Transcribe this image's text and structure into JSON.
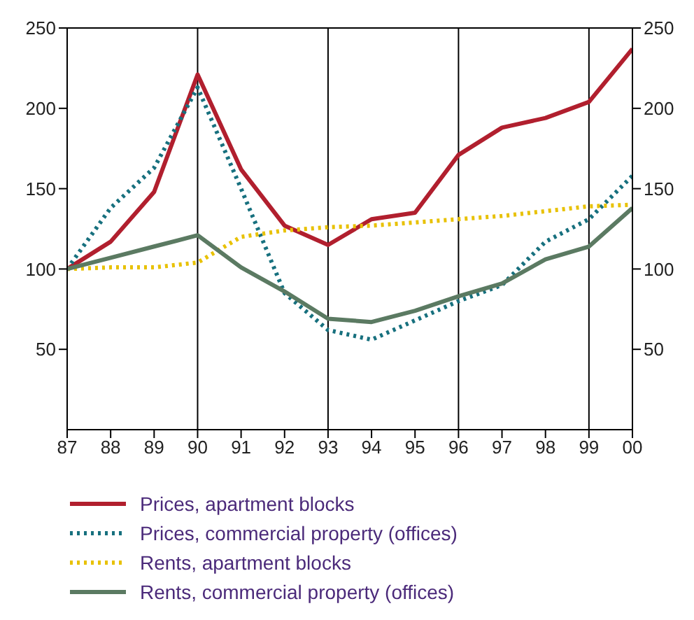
{
  "chart_data": {
    "type": "line",
    "x": [
      1987,
      1988,
      1989,
      1990,
      1991,
      1992,
      1993,
      1994,
      1995,
      1996,
      1997,
      1998,
      1999,
      2000
    ],
    "xlim": [
      1987,
      2000
    ],
    "xticks": [
      {
        "value": 1987,
        "label": "87"
      },
      {
        "value": 1988,
        "label": "88"
      },
      {
        "value": 1989,
        "label": "89"
      },
      {
        "value": 1990,
        "label": "90"
      },
      {
        "value": 1991,
        "label": "91"
      },
      {
        "value": 1992,
        "label": "92"
      },
      {
        "value": 1993,
        "label": "93"
      },
      {
        "value": 1994,
        "label": "94"
      },
      {
        "value": 1995,
        "label": "95"
      },
      {
        "value": 1996,
        "label": "96"
      },
      {
        "value": 1997,
        "label": "97"
      },
      {
        "value": 1998,
        "label": "98"
      },
      {
        "value": 1999,
        "label": "99"
      },
      {
        "value": 2000,
        "label": "00"
      }
    ],
    "ylim": [
      0,
      250
    ],
    "yticks": [
      50,
      100,
      150,
      200,
      250
    ],
    "y2lim": [
      0,
      250
    ],
    "y2ticks": [
      50,
      100,
      150,
      200,
      250
    ],
    "ref_lines": [
      {
        "axis": "x",
        "value": 1990
      },
      {
        "axis": "x",
        "value": 1993
      },
      {
        "axis": "x",
        "value": 1996
      },
      {
        "axis": "x",
        "value": 1999
      }
    ],
    "legend": "bottom",
    "marker": "none",
    "series": [
      {
        "name": "Prices, apartment blocks",
        "color": "#b11f2e",
        "line_style": "solid",
        "values": [
          100,
          117,
          148,
          221,
          162,
          127,
          115,
          131,
          135,
          171,
          188,
          194,
          204,
          237
        ]
      },
      {
        "name": "Prices, commercial property (offices)",
        "color": "#17707e",
        "line_style": "dotted",
        "values": [
          100,
          138,
          163,
          213,
          150,
          85,
          62,
          56,
          68,
          80,
          90,
          117,
          131,
          158
        ]
      },
      {
        "name": "Rents, apartment blocks",
        "color": "#e8c100",
        "line_style": "dotted",
        "values": [
          100,
          101,
          101,
          104,
          120,
          124,
          126,
          127,
          129,
          131,
          133,
          136,
          139,
          140
        ]
      },
      {
        "name": "Rents, commercial property (offices)",
        "color": "#5b7a62",
        "line_style": "solid",
        "values": [
          100,
          107,
          114,
          121,
          101,
          86,
          69,
          67,
          74,
          83,
          91,
          106,
          114,
          138
        ]
      }
    ]
  }
}
